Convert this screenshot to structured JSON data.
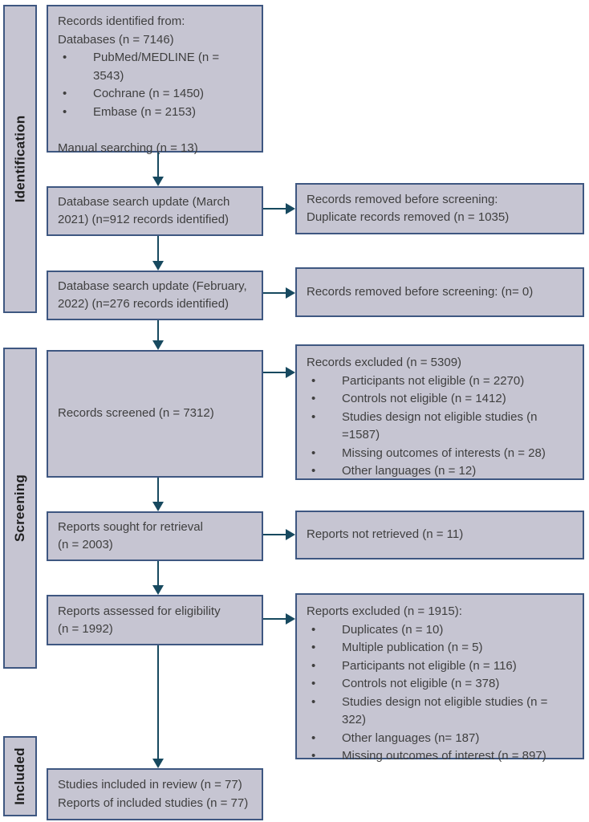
{
  "diagram": {
    "type": "PRISMA flow diagram",
    "colors": {
      "box_fill": "#c6c5d2",
      "box_border": "#3e5781",
      "arrow": "#17495f",
      "text": "#3f3f3f"
    },
    "stages": [
      {
        "label": "Identification"
      },
      {
        "label": "Screening"
      },
      {
        "label": "Included"
      }
    ],
    "boxes": {
      "records_identified": {
        "lines": [
          {
            "text": "Records identified from:"
          },
          {
            "text": "Databases (n = 7146)"
          },
          {
            "text": "PubMed/MEDLINE (n = 3543)",
            "bullet": true
          },
          {
            "text": "Cochrane (n = 1450)",
            "bullet": true
          },
          {
            "text": "Embase (n = 2153)",
            "bullet": true
          },
          {
            "text": ""
          },
          {
            "text": "Manual searching (n = 13)"
          }
        ]
      },
      "db_update_march": {
        "lines": [
          {
            "text": "Database search update (March"
          },
          {
            "text": "2021) (n=912 records identified)"
          }
        ]
      },
      "removed_duplicates": {
        "lines": [
          {
            "text": "Records removed before screening:"
          },
          {
            "text": "Duplicate records removed (n = 1035)"
          }
        ]
      },
      "db_update_feb": {
        "lines": [
          {
            "text": "Database search update (February,"
          },
          {
            "text": "2022) (n=276 records identified)"
          }
        ]
      },
      "removed_none": {
        "lines": [
          {
            "text": "Records removed before screening: (n= 0)"
          }
        ]
      },
      "records_screened": {
        "lines": [
          {
            "text": "Records screened (n = 7312)"
          }
        ]
      },
      "records_excluded": {
        "lines": [
          {
            "text": "Records excluded (n = 5309)"
          },
          {
            "text": "Participants not eligible (n = 2270)",
            "bullet": true
          },
          {
            "text": "Controls not eligible (n = 1412)",
            "bullet": true
          },
          {
            "text": "Studies design not eligible studies (n =1587)",
            "bullet": true
          },
          {
            "text": "Missing outcomes of interests (n = 28)",
            "bullet": true
          },
          {
            "text": "Other languages (n = 12)",
            "bullet": true
          }
        ]
      },
      "reports_sought": {
        "lines": [
          {
            "text": "Reports sought for retrieval"
          },
          {
            "text": "(n = 2003)"
          }
        ]
      },
      "reports_not_retrieved": {
        "lines": [
          {
            "text": "Reports not retrieved (n = 11)"
          }
        ]
      },
      "reports_assessed": {
        "lines": [
          {
            "text": "Reports assessed for eligibility"
          },
          {
            "text": "(n = 1992)"
          }
        ]
      },
      "reports_excluded": {
        "lines": [
          {
            "text": "Reports excluded (n = 1915):"
          },
          {
            "text": "Duplicates  (n = 10)",
            "bullet": true
          },
          {
            "text": "Multiple publication (n = 5)",
            "bullet": true
          },
          {
            "text": "Participants not eligible (n = 116)",
            "bullet": true
          },
          {
            "text": "Controls not eligible (n = 378)",
            "bullet": true
          },
          {
            "text": "Studies design not eligible studies (n = 322)",
            "bullet": true
          },
          {
            "text": "Other languages (n= 187)",
            "bullet": true
          },
          {
            "text": "Missing outcomes of interest (n = 897)",
            "bullet": true
          }
        ]
      },
      "studies_included": {
        "lines": [
          {
            "text": "Studies included in review (n = 77)"
          },
          {
            "text": "Reports of included studies (n = 77)"
          }
        ]
      }
    }
  }
}
